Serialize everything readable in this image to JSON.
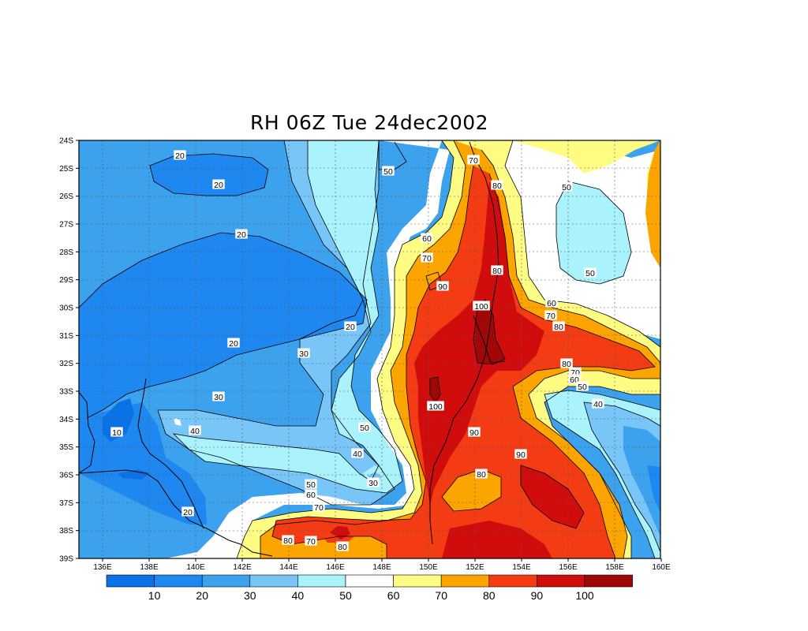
{
  "title": "RH 06Z Tue 24dec2002",
  "colors": {
    "c0": "#0a72e6",
    "c10": "#1e88f0",
    "c20": "#3ca2ee",
    "c30": "#78c6f8",
    "c40": "#aaf2fc",
    "c50": "#ffffff",
    "c60": "#fefc82",
    "c70": "#fca400",
    "c80": "#f43c14",
    "c90": "#d00c0c",
    "c100": "#a00808",
    "c110": "#a00000"
  },
  "axes": {
    "lat_labels": [
      "24S",
      "25S",
      "26S",
      "27S",
      "28S",
      "29S",
      "30S",
      "31S",
      "32S",
      "33S",
      "34S",
      "35S",
      "36S",
      "37S",
      "38S",
      "39S"
    ],
    "lon_labels": [
      "136E",
      "138E",
      "140E",
      "142E",
      "144E",
      "146E",
      "148E",
      "150E",
      "152E",
      "154E",
      "156E",
      "158E",
      "160E"
    ]
  },
  "colorbar": {
    "labels": [
      "10",
      "20",
      "30",
      "40",
      "50",
      "60",
      "70",
      "80",
      "90",
      "100"
    ]
  },
  "contour_labels": [
    "20",
    "20",
    "20",
    "50",
    "70",
    "80",
    "50",
    "60",
    "70",
    "80",
    "90",
    "100",
    "50",
    "20",
    "20",
    "30",
    "60",
    "70",
    "80",
    "80",
    "70",
    "60",
    "50",
    "40",
    "30",
    "100",
    "90",
    "90",
    "10",
    "40",
    "50",
    "40",
    "30",
    "80",
    "50",
    "60",
    "70",
    "20",
    "80",
    "70",
    "80"
  ]
}
